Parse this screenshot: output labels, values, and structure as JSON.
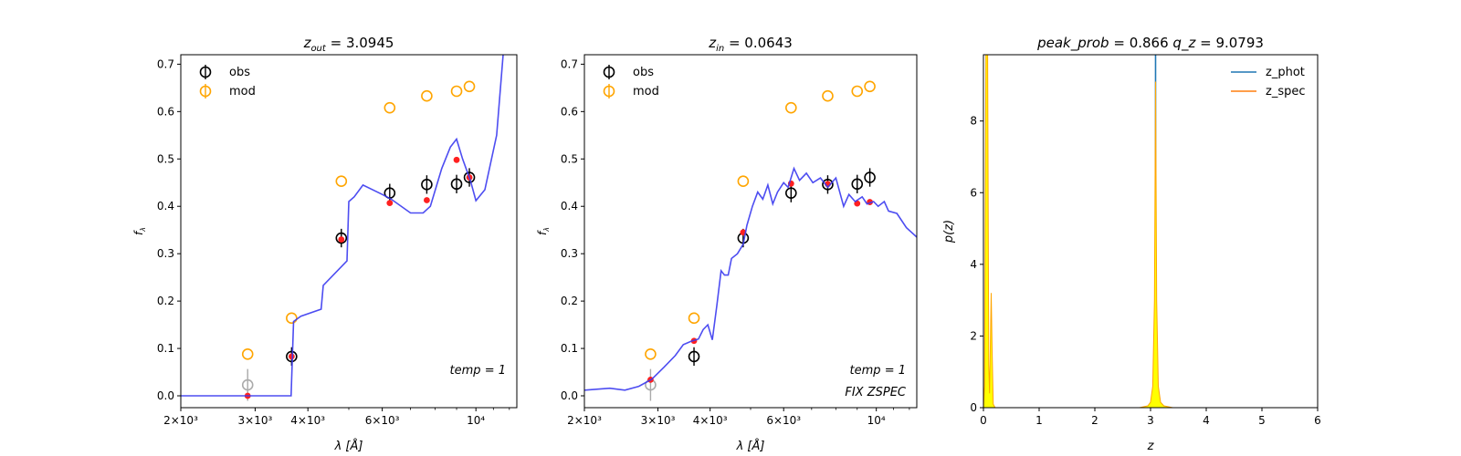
{
  "figure": {
    "background": "#ffffff"
  },
  "chart_data": [
    {
      "type": "scatter",
      "panel": "sed-out",
      "title": {
        "prefix": "z",
        "sub": "out",
        "value": "3.0945"
      },
      "xlabel": "λ [Å]",
      "ylabel": "f_λ",
      "x_scale": "log",
      "xlim": [
        2000,
        12500
      ],
      "ylim": [
        -0.025,
        0.72
      ],
      "xticks": [
        {
          "value": 2000,
          "label": "2×10³"
        },
        {
          "value": 3000,
          "label": "3×10³"
        },
        {
          "value": 4000,
          "label": "4×10³"
        },
        {
          "value": 6000,
          "label": "6×10³"
        },
        {
          "value": 10000,
          "label": "10⁴"
        }
      ],
      "yticks": [
        {
          "value": 0.0,
          "label": "0.0"
        },
        {
          "value": 0.1,
          "label": "0.1"
        },
        {
          "value": 0.2,
          "label": "0.2"
        },
        {
          "value": 0.3,
          "label": "0.3"
        },
        {
          "value": 0.4,
          "label": "0.4"
        },
        {
          "value": 0.5,
          "label": "0.5"
        },
        {
          "value": 0.6,
          "label": "0.6"
        },
        {
          "value": 0.7,
          "label": "0.7"
        }
      ],
      "legend": {
        "placement": "upper-left",
        "entries": [
          {
            "label": "obs",
            "color": "#000000"
          },
          {
            "label": "mod",
            "color": "#ffa500"
          }
        ]
      },
      "annotations": [
        {
          "text": "temp = 1",
          "position": "lower-right-upper"
        }
      ],
      "series": [
        {
          "name": "obs",
          "kind": "errorbar",
          "color": "#000000",
          "points": [
            {
              "x": 3660,
              "y": 0.083,
              "err": 0.008
            },
            {
              "x": 4800,
              "y": 0.333,
              "err": 0.008
            },
            {
              "x": 6250,
              "y": 0.428,
              "err": 0.008
            },
            {
              "x": 7650,
              "y": 0.446,
              "err": 0.008
            },
            {
              "x": 9000,
              "y": 0.447,
              "err": 0.008
            },
            {
              "x": 9650,
              "y": 0.461,
              "err": 0.008
            }
          ]
        },
        {
          "name": "obs_faint",
          "kind": "errorbar",
          "color": "#aaaaaa",
          "points": [
            {
              "x": 2880,
              "y": 0.023,
              "err": 0.022
            }
          ]
        },
        {
          "name": "mod",
          "kind": "open-circle",
          "color": "#ffa500",
          "points": [
            {
              "x": 2880,
              "y": 0.088
            },
            {
              "x": 3660,
              "y": 0.164
            },
            {
              "x": 4800,
              "y": 0.453
            },
            {
              "x": 6250,
              "y": 0.608
            },
            {
              "x": 7650,
              "y": 0.633
            },
            {
              "x": 9000,
              "y": 0.643
            },
            {
              "x": 9650,
              "y": 0.653
            }
          ]
        },
        {
          "name": "synthetic",
          "kind": "dot",
          "color": "#ff2020",
          "points": [
            {
              "x": 2880,
              "y": 0.0
            },
            {
              "x": 3660,
              "y": 0.083
            },
            {
              "x": 4800,
              "y": 0.33
            },
            {
              "x": 6250,
              "y": 0.407
            },
            {
              "x": 7650,
              "y": 0.413
            },
            {
              "x": 9000,
              "y": 0.498
            },
            {
              "x": 9650,
              "y": 0.461
            }
          ]
        },
        {
          "name": "template",
          "kind": "line",
          "color": "#3a3af0",
          "points": [
            {
              "x": 2000,
              "y": 0.0
            },
            {
              "x": 3650,
              "y": 0.0
            },
            {
              "x": 3700,
              "y": 0.157
            },
            {
              "x": 3850,
              "y": 0.168
            },
            {
              "x": 4300,
              "y": 0.183
            },
            {
              "x": 4350,
              "y": 0.233
            },
            {
              "x": 4950,
              "y": 0.285
            },
            {
              "x": 5000,
              "y": 0.41
            },
            {
              "x": 5150,
              "y": 0.42
            },
            {
              "x": 5400,
              "y": 0.445
            },
            {
              "x": 6000,
              "y": 0.425
            },
            {
              "x": 6300,
              "y": 0.415
            },
            {
              "x": 7000,
              "y": 0.386
            },
            {
              "x": 7500,
              "y": 0.386
            },
            {
              "x": 7800,
              "y": 0.4
            },
            {
              "x": 8300,
              "y": 0.48
            },
            {
              "x": 8700,
              "y": 0.525
            },
            {
              "x": 9000,
              "y": 0.542
            },
            {
              "x": 9300,
              "y": 0.5
            },
            {
              "x": 9700,
              "y": 0.455
            },
            {
              "x": 10000,
              "y": 0.412
            },
            {
              "x": 10500,
              "y": 0.435
            },
            {
              "x": 11200,
              "y": 0.55
            },
            {
              "x": 11600,
              "y": 0.72
            }
          ]
        }
      ]
    },
    {
      "type": "scatter",
      "panel": "sed-in",
      "title": {
        "prefix": "z",
        "sub": "in",
        "value": "0.0643"
      },
      "xlabel": "λ [Å]",
      "ylabel": "f_λ",
      "x_scale": "log",
      "xlim": [
        2000,
        12500
      ],
      "ylim": [
        -0.025,
        0.72
      ],
      "xticks": [
        {
          "value": 2000,
          "label": "2×10³"
        },
        {
          "value": 3000,
          "label": "3×10³"
        },
        {
          "value": 4000,
          "label": "4×10³"
        },
        {
          "value": 6000,
          "label": "6×10³"
        },
        {
          "value": 10000,
          "label": "10⁴"
        }
      ],
      "yticks": [
        {
          "value": 0.0,
          "label": "0.0"
        },
        {
          "value": 0.1,
          "label": "0.1"
        },
        {
          "value": 0.2,
          "label": "0.2"
        },
        {
          "value": 0.3,
          "label": "0.3"
        },
        {
          "value": 0.4,
          "label": "0.4"
        },
        {
          "value": 0.5,
          "label": "0.5"
        },
        {
          "value": 0.6,
          "label": "0.6"
        },
        {
          "value": 0.7,
          "label": "0.7"
        }
      ],
      "legend": {
        "placement": "upper-left",
        "entries": [
          {
            "label": "obs",
            "color": "#000000"
          },
          {
            "label": "mod",
            "color": "#ffa500"
          }
        ]
      },
      "annotations": [
        {
          "text": "temp = 1",
          "position": "lower-right-upper"
        },
        {
          "text": "FIX ZSPEC",
          "position": "lower-right"
        }
      ],
      "series": [
        {
          "name": "obs",
          "kind": "errorbar",
          "color": "#000000",
          "points": [
            {
              "x": 3660,
              "y": 0.083,
              "err": 0.008
            },
            {
              "x": 4800,
              "y": 0.333,
              "err": 0.008
            },
            {
              "x": 6250,
              "y": 0.428,
              "err": 0.008
            },
            {
              "x": 7650,
              "y": 0.446,
              "err": 0.008
            },
            {
              "x": 9000,
              "y": 0.447,
              "err": 0.008
            },
            {
              "x": 9650,
              "y": 0.461,
              "err": 0.008
            }
          ]
        },
        {
          "name": "obs_faint",
          "kind": "errorbar",
          "color": "#aaaaaa",
          "points": [
            {
              "x": 2880,
              "y": 0.023,
              "err": 0.022
            }
          ]
        },
        {
          "name": "mod",
          "kind": "open-circle",
          "color": "#ffa500",
          "points": [
            {
              "x": 2880,
              "y": 0.088
            },
            {
              "x": 3660,
              "y": 0.164
            },
            {
              "x": 4800,
              "y": 0.453
            },
            {
              "x": 6250,
              "y": 0.608
            },
            {
              "x": 7650,
              "y": 0.633
            },
            {
              "x": 9000,
              "y": 0.643
            },
            {
              "x": 9650,
              "y": 0.653
            }
          ]
        },
        {
          "name": "synthetic",
          "kind": "dot",
          "color": "#ff2020",
          "points": [
            {
              "x": 2880,
              "y": 0.034
            },
            {
              "x": 3660,
              "y": 0.116
            },
            {
              "x": 4800,
              "y": 0.345
            },
            {
              "x": 6250,
              "y": 0.448
            },
            {
              "x": 7650,
              "y": 0.447
            },
            {
              "x": 9000,
              "y": 0.406
            },
            {
              "x": 9650,
              "y": 0.409
            }
          ]
        },
        {
          "name": "template",
          "kind": "line",
          "color": "#3a3af0",
          "points": [
            {
              "x": 2000,
              "y": 0.012
            },
            {
              "x": 2300,
              "y": 0.016
            },
            {
              "x": 2500,
              "y": 0.012
            },
            {
              "x": 2700,
              "y": 0.02
            },
            {
              "x": 2900,
              "y": 0.035
            },
            {
              "x": 3100,
              "y": 0.06
            },
            {
              "x": 3300,
              "y": 0.085
            },
            {
              "x": 3450,
              "y": 0.108
            },
            {
              "x": 3600,
              "y": 0.115
            },
            {
              "x": 3750,
              "y": 0.12
            },
            {
              "x": 3850,
              "y": 0.14
            },
            {
              "x": 3950,
              "y": 0.15
            },
            {
              "x": 4050,
              "y": 0.118
            },
            {
              "x": 4150,
              "y": 0.19
            },
            {
              "x": 4250,
              "y": 0.264
            },
            {
              "x": 4330,
              "y": 0.255
            },
            {
              "x": 4420,
              "y": 0.255
            },
            {
              "x": 4500,
              "y": 0.29
            },
            {
              "x": 4650,
              "y": 0.3
            },
            {
              "x": 4800,
              "y": 0.32
            },
            {
              "x": 4900,
              "y": 0.36
            },
            {
              "x": 5050,
              "y": 0.4
            },
            {
              "x": 5200,
              "y": 0.43
            },
            {
              "x": 5350,
              "y": 0.415
            },
            {
              "x": 5500,
              "y": 0.445
            },
            {
              "x": 5650,
              "y": 0.405
            },
            {
              "x": 5800,
              "y": 0.43
            },
            {
              "x": 6000,
              "y": 0.45
            },
            {
              "x": 6150,
              "y": 0.44
            },
            {
              "x": 6350,
              "y": 0.48
            },
            {
              "x": 6550,
              "y": 0.455
            },
            {
              "x": 6800,
              "y": 0.47
            },
            {
              "x": 7050,
              "y": 0.45
            },
            {
              "x": 7350,
              "y": 0.46
            },
            {
              "x": 7650,
              "y": 0.44
            },
            {
              "x": 8000,
              "y": 0.46
            },
            {
              "x": 8350,
              "y": 0.4
            },
            {
              "x": 8600,
              "y": 0.425
            },
            {
              "x": 8900,
              "y": 0.41
            },
            {
              "x": 9250,
              "y": 0.42
            },
            {
              "x": 9500,
              "y": 0.405
            },
            {
              "x": 9850,
              "y": 0.41
            },
            {
              "x": 10100,
              "y": 0.4
            },
            {
              "x": 10450,
              "y": 0.41
            },
            {
              "x": 10700,
              "y": 0.39
            },
            {
              "x": 11200,
              "y": 0.385
            },
            {
              "x": 11800,
              "y": 0.355
            },
            {
              "x": 12500,
              "y": 0.335
            }
          ]
        }
      ]
    },
    {
      "type": "area",
      "panel": "pz",
      "title": {
        "peak_label": "peak_prob",
        "peak_value": "0.866",
        "q_label": "q_z",
        "q_value": "9.0793"
      },
      "xlabel": "z",
      "ylabel": "p(z)",
      "xlim": [
        0,
        6
      ],
      "ylim": [
        0,
        9.85
      ],
      "xticks": [
        {
          "value": 0,
          "label": "0"
        },
        {
          "value": 1,
          "label": "1"
        },
        {
          "value": 2,
          "label": "2"
        },
        {
          "value": 3,
          "label": "3"
        },
        {
          "value": 4,
          "label": "4"
        },
        {
          "value": 5,
          "label": "5"
        },
        {
          "value": 6,
          "label": "6"
        }
      ],
      "yticks": [
        {
          "value": 0,
          "label": "0"
        },
        {
          "value": 2,
          "label": "2"
        },
        {
          "value": 4,
          "label": "4"
        },
        {
          "value": 6,
          "label": "6"
        },
        {
          "value": 8,
          "label": "8"
        }
      ],
      "legend": {
        "placement": "upper-right",
        "entries": [
          {
            "label": "z_phot",
            "color": "#1f77b4"
          },
          {
            "label": "z_spec",
            "color": "#ff7f0e"
          }
        ]
      },
      "fill_color": "#ffff00",
      "series": [
        {
          "name": "z_phot",
          "kind": "vline",
          "color": "#1f77b4",
          "x": 3.09
        },
        {
          "name": "z_spec",
          "kind": "vline",
          "color": "#ff7f0e",
          "x": 0.064
        },
        {
          "name": "pz_peak",
          "kind": "fill",
          "color": "#ffff00",
          "edge": "#ffa500",
          "points": [
            {
              "x": 0.0,
              "y": 0.0
            },
            {
              "x": 2.8,
              "y": 0.0
            },
            {
              "x": 2.95,
              "y": 0.05
            },
            {
              "x": 3.0,
              "y": 0.15
            },
            {
              "x": 3.04,
              "y": 0.6
            },
            {
              "x": 3.07,
              "y": 3.0
            },
            {
              "x": 3.09,
              "y": 9.1
            },
            {
              "x": 3.11,
              "y": 3.0
            },
            {
              "x": 3.14,
              "y": 0.6
            },
            {
              "x": 3.18,
              "y": 0.15
            },
            {
              "x": 3.24,
              "y": 0.05
            },
            {
              "x": 3.4,
              "y": 0.0
            },
            {
              "x": 5.0,
              "y": 0.0
            }
          ]
        },
        {
          "name": "pz_low",
          "kind": "fill",
          "color": "#ffff00",
          "edge": "#ffa500",
          "points": [
            {
              "x": 0.0,
              "y": 0.0
            },
            {
              "x": 0.02,
              "y": 0.6
            },
            {
              "x": 0.045,
              "y": 9.85
            },
            {
              "x": 0.075,
              "y": 9.85
            },
            {
              "x": 0.095,
              "y": 1.2
            },
            {
              "x": 0.11,
              "y": 0.4
            },
            {
              "x": 0.125,
              "y": 1.8
            },
            {
              "x": 0.14,
              "y": 3.2
            },
            {
              "x": 0.155,
              "y": 1.6
            },
            {
              "x": 0.175,
              "y": 0.1
            },
            {
              "x": 0.21,
              "y": 0.0
            }
          ]
        }
      ]
    }
  ]
}
